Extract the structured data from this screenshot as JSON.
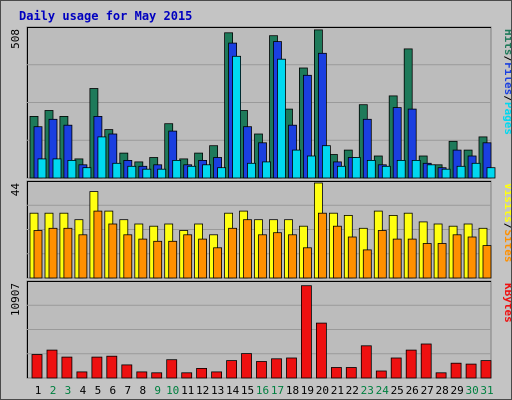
{
  "title": "Daily usage for May 2015",
  "colors": {
    "title": "#0000c0",
    "plot_bg": "#bcbcbc",
    "frame_bg": "#c4c4c4",
    "hits": "#1e7a5a",
    "files": "#1a3fe0",
    "pages": "#00d8f0",
    "visits": "#ffff10",
    "sites": "#ff9000",
    "kbytes": "#ee1010",
    "weekend_label": "#008040",
    "day_label": "#000000",
    "slash": "#000000"
  },
  "panel_labels": {
    "top": {
      "max": "508",
      "parts": [
        "Pages",
        "Files",
        "Hits"
      ]
    },
    "mid": {
      "max": "44",
      "parts": [
        "Sites",
        "Visits"
      ]
    },
    "bot": {
      "max": "10907",
      "parts": [
        "KBytes"
      ]
    }
  },
  "weekend_days": [
    2,
    3,
    9,
    10,
    16,
    17,
    23,
    24,
    30,
    31
  ],
  "chart_data": {
    "type": "bar",
    "title": "Daily usage for May 2015",
    "categories": [
      "1",
      "2",
      "3",
      "4",
      "5",
      "6",
      "7",
      "8",
      "9",
      "10",
      "11",
      "12",
      "13",
      "14",
      "15",
      "16",
      "17",
      "18",
      "19",
      "20",
      "21",
      "22",
      "23",
      "24",
      "25",
      "26",
      "27",
      "28",
      "29",
      "30",
      "31"
    ],
    "panels": [
      {
        "name": "traffic",
        "ylim": [
          0,
          508
        ],
        "series": [
          {
            "name": "Hits",
            "values": [
              210,
              230,
              210,
              65,
              305,
              165,
              85,
              55,
              70,
              185,
              65,
              85,
              110,
              495,
              230,
              150,
              485,
              235,
              375,
              505,
              80,
              95,
              250,
              75,
              280,
              440,
              75,
              45,
              125,
              95,
              140
            ]
          },
          {
            "name": "Files",
            "values": [
              175,
              200,
              180,
              45,
              210,
              150,
              60,
              40,
              45,
              160,
              45,
              60,
              70,
              460,
              175,
              120,
              465,
              180,
              350,
              425,
              55,
              70,
              200,
              45,
              240,
              235,
              50,
              35,
              95,
              75,
              120
            ]
          },
          {
            "name": "Pages",
            "values": [
              65,
              65,
              60,
              35,
              140,
              50,
              40,
              30,
              30,
              60,
              40,
              45,
              35,
              415,
              50,
              55,
              405,
              95,
              75,
              110,
              40,
              70,
              60,
              40,
              60,
              60,
              45,
              30,
              40,
              50,
              35
            ]
          }
        ]
      },
      {
        "name": "visitors",
        "ylim": [
          0,
          44
        ],
        "series": [
          {
            "name": "Visits",
            "values": [
              30,
              30,
              30,
              27,
              40,
              31,
              27,
              25,
              24,
              25,
              22,
              25,
              20,
              30,
              31,
              27,
              27,
              27,
              24,
              44,
              30,
              29,
              23,
              31,
              29,
              30,
              26,
              25,
              24,
              25,
              23
            ]
          },
          {
            "name": "Sites",
            "values": [
              22,
              23,
              23,
              20,
              31,
              25,
              20,
              18,
              17,
              17,
              20,
              18,
              14,
              23,
              27,
              20,
              21,
              20,
              14,
              30,
              24,
              19,
              13,
              22,
              18,
              18,
              16,
              16,
              20,
              19,
              15
            ]
          }
        ]
      },
      {
        "name": "volume",
        "ylim": [
          0,
          10907
        ],
        "series": [
          {
            "name": "KBytes",
            "values": [
              2700,
              3200,
              2400,
              700,
              2400,
              2500,
              1500,
              700,
              600,
              2100,
              600,
              1100,
              700,
              2000,
              2800,
              1900,
              2200,
              2300,
              10600,
              6300,
              1200,
              1200,
              3700,
              800,
              2300,
              3200,
              3900,
              600,
              1700,
              1600,
              2000
            ]
          }
        ]
      }
    ]
  }
}
